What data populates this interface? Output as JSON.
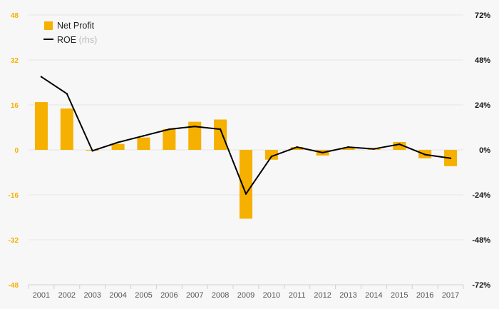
{
  "chart_data": {
    "type": "bar+line",
    "categories": [
      "2001",
      "2002",
      "2003",
      "2004",
      "2005",
      "2006",
      "2007",
      "2008",
      "2009",
      "2010",
      "2011",
      "2012",
      "2013",
      "2014",
      "2015",
      "2016",
      "2017"
    ],
    "series": [
      {
        "name": "Net Profit",
        "type": "bar",
        "axis": "left",
        "color": "#f5b000",
        "values": [
          17.0,
          14.7,
          -0.3,
          2.1,
          4.4,
          7.4,
          10.0,
          10.8,
          -24.5,
          -3.5,
          1.0,
          -2.0,
          0.7,
          0.4,
          2.8,
          -3.0,
          -5.8
        ]
      },
      {
        "name": "ROE",
        "suffix": " (rhs)",
        "type": "line",
        "axis": "right",
        "color": "#000000",
        "values": [
          39.0,
          30.0,
          -0.5,
          4.0,
          7.5,
          11.0,
          12.5,
          11.0,
          -23.5,
          -3.5,
          1.5,
          -1.5,
          1.5,
          0.5,
          3.0,
          -2.5,
          -4.5
        ]
      }
    ],
    "y_left": {
      "min": -48,
      "max": 48,
      "ticks": [
        "48",
        "32",
        "16",
        "0",
        "-16",
        "-32",
        "-48"
      ],
      "color": "#f5b000"
    },
    "y_right": {
      "min": -72,
      "max": 72,
      "ticks": [
        "72%",
        "48%",
        "24%",
        "0%",
        "-24%",
        "-48%",
        "-72%"
      ]
    },
    "grid": true,
    "legend_position": "top-left"
  }
}
